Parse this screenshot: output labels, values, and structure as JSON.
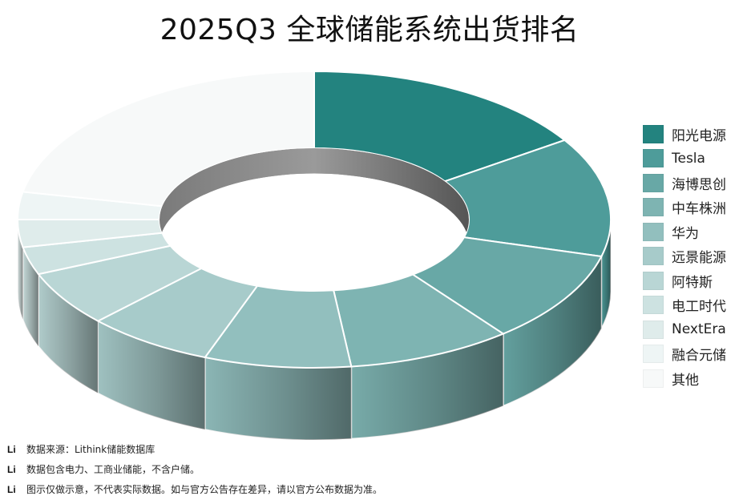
{
  "title": "2025Q3 全球储能系统出货排名",
  "chart_data": {
    "type": "pie",
    "title": "2025Q3 全球储能系统出货排名",
    "donut": true,
    "three_d": true,
    "legend_position": "right",
    "categories": [
      "阳光电源",
      "Tesla",
      "海博思创",
      "中车株洲",
      "华为",
      "远景能源",
      "阿特斯",
      "电工时代",
      "NextEra",
      "融合元储",
      "其他"
    ],
    "values": [
      16,
      13,
      10,
      9,
      8,
      7,
      6,
      3,
      3,
      3,
      22
    ],
    "colors": [
      "#23837f",
      "#4e9c9a",
      "#68a8a6",
      "#7eb4b2",
      "#92bfbe",
      "#a7cbca",
      "#b9d6d5",
      "#cde2e1",
      "#dfeceb",
      "#eef5f5",
      "#f7f9f9"
    ]
  },
  "notes": [
    {
      "icon": "Li",
      "text": "数据来源：Lithink储能数据库"
    },
    {
      "icon": "Li",
      "text": "数据包含电力、工商业储能，不含户储。"
    },
    {
      "icon": "Li",
      "text": "图示仅做示意，不代表实际数据。如与官方公告存在差异，请以官方公布数据为准。"
    }
  ]
}
